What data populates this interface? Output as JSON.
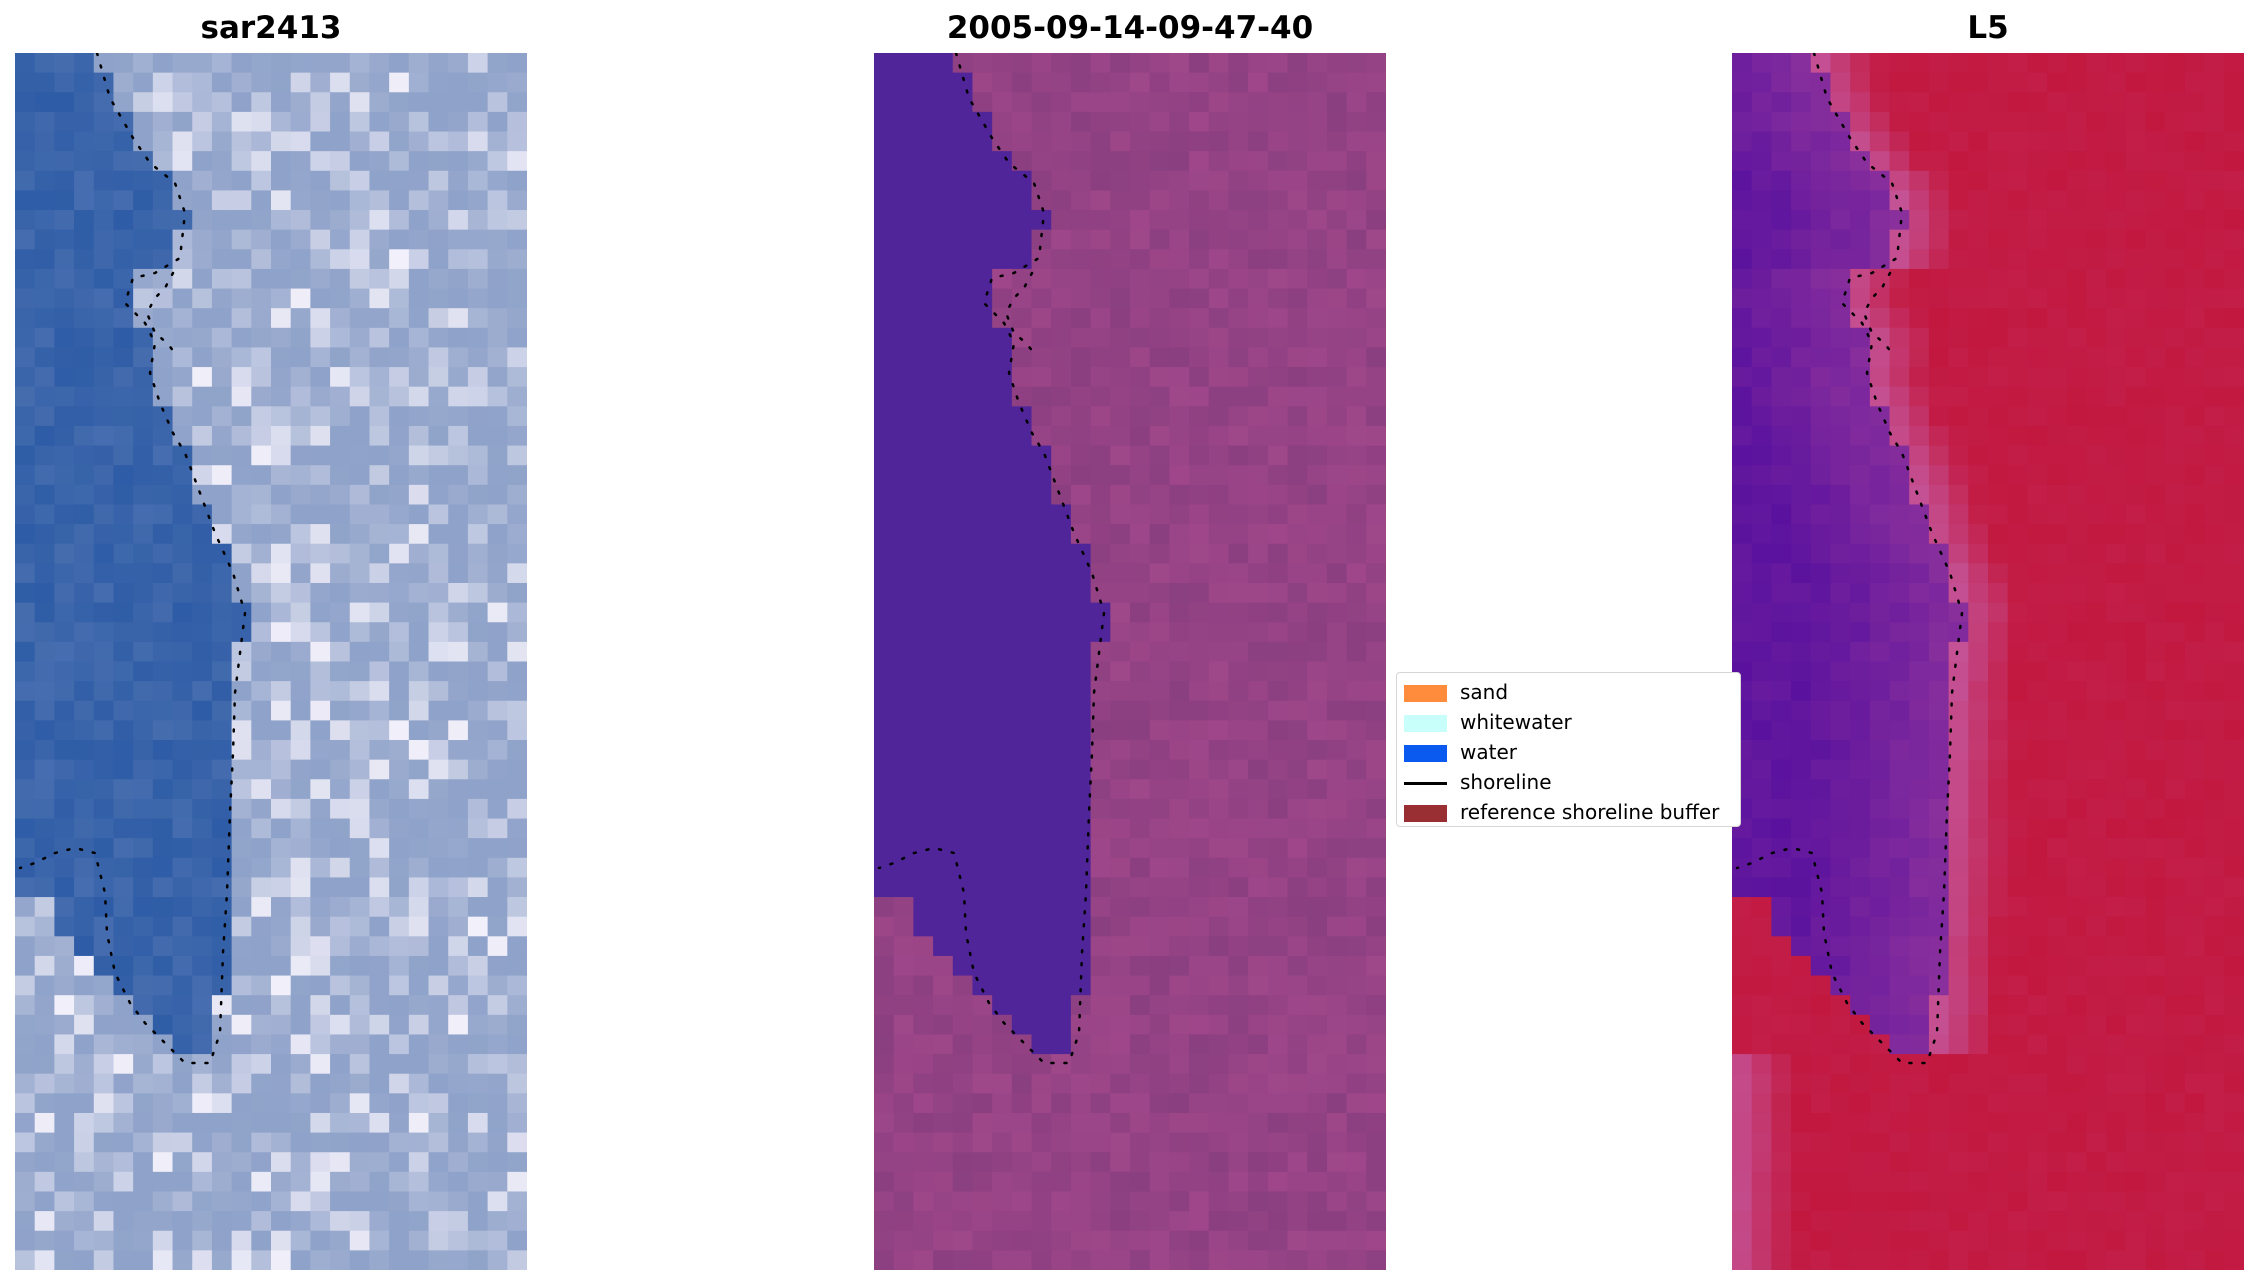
{
  "panels": [
    {
      "title": "sar2413",
      "style": "rgb"
    },
    {
      "title": "2005-09-14-09-47-40",
      "style": "classified"
    },
    {
      "title": "L5",
      "style": "index"
    }
  ],
  "legend": {
    "items": [
      {
        "label": "sand",
        "kind": "patch",
        "color": "#FF8C3C"
      },
      {
        "label": "whitewater",
        "kind": "patch",
        "color": "#C8FFFA"
      },
      {
        "label": "water",
        "kind": "patch",
        "color": "#0A5AF0"
      },
      {
        "label": "shoreline",
        "kind": "line",
        "color": "#000000"
      },
      {
        "label": "reference shoreline buffer",
        "kind": "patch",
        "color": "#9A2F33"
      }
    ]
  },
  "colors": {
    "rgb_water": "#2E5CA6",
    "rgb_land": "#8FA2C9",
    "rgb_bright": "#F2F0FA",
    "class_water": "#51259A",
    "class_land": "#8A3F80",
    "index_low": "#5A129E",
    "index_mid": "#C4559A",
    "index_high": "#C2183F"
  }
}
